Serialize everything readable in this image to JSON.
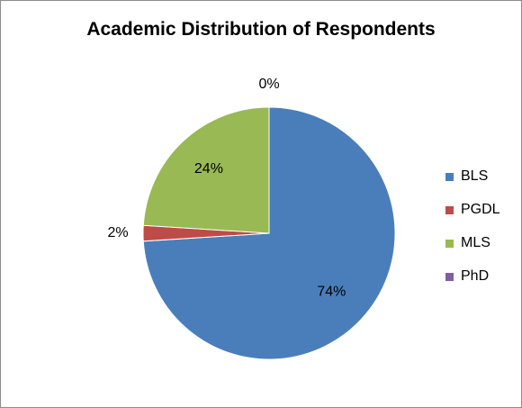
{
  "chart_data": {
    "type": "pie",
    "title": "Academic Distribution of Respondents",
    "categories": [
      "BLS",
      "PGDL",
      "MLS",
      "PhD"
    ],
    "values": [
      74,
      2,
      24,
      0
    ],
    "data_labels": [
      "74%",
      "2%",
      "24%",
      "0%"
    ],
    "colors": [
      "#4a7ebb",
      "#be4b48",
      "#98b954",
      "#7d60a0"
    ],
    "legend": "right"
  }
}
